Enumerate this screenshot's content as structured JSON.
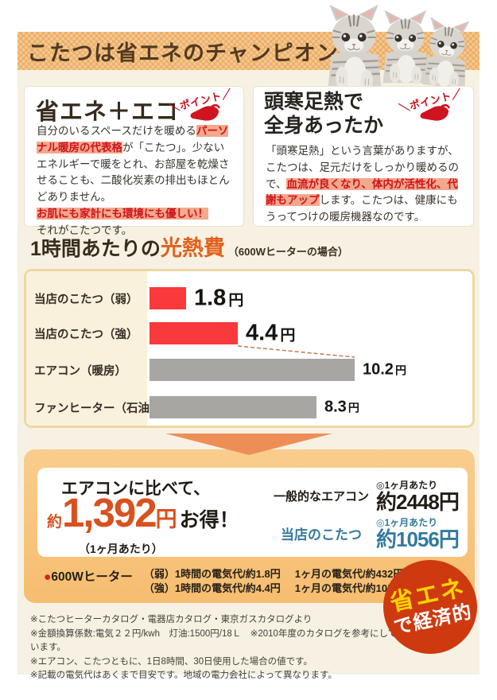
{
  "banner": {
    "title": "こたつは省エネのチャンピオン！"
  },
  "point_label": "＼ポイント／",
  "eco_box": {
    "heading": "省エネ＋エコ",
    "body": [
      {
        "t": "自分のいるスペースだけを暖める"
      },
      {
        "t": "パーソナル暖房の代表格",
        "h": true
      },
      {
        "t": "が「こたつ」。少ないエネルギーで暖をとれ、お部屋を乾燥させることも、二酸化炭素の排出もほとんどありません。"
      },
      {
        "br": true
      },
      {
        "t": "お肌にも家計にも環境にも優しい！",
        "h": true
      },
      {
        "br": true
      },
      {
        "t": "それがこたつです。"
      }
    ]
  },
  "warm_box": {
    "heading_line1": "頭寒足熱で",
    "heading_line2": "全身あったか",
    "body": [
      {
        "t": "「頭寒足熱」という言葉がありますが、こたつは、足元だけをしっかり暖めるので、"
      },
      {
        "t": "血流が良くなり、体内が活性化、代謝もアップ",
        "h": true
      },
      {
        "t": "します。こたつは、健康にもうってつけの暖房機器なのです。"
      }
    ]
  },
  "chart_heading": {
    "prefix": "1時間あたりの",
    "em": "光熱費",
    "suffix": "（600Wヒーターの場合）"
  },
  "chart_data": {
    "type": "bar",
    "orientation": "horizontal",
    "title": "1時間あたりの光熱費（600Wヒーターの場合）",
    "categories": [
      "当店のこたつ（弱）",
      "当店のこたつ（強）",
      "エアコン（暖房）",
      "ファンヒーター（石油）"
    ],
    "values": [
      1.8,
      4.4,
      10.2,
      8.3
    ],
    "unit": "円",
    "bar_colors": [
      "#f83a3c",
      "#f83a3c",
      "#a8a6a3",
      "#a8a6a3"
    ],
    "xlim": [
      0,
      11
    ],
    "grid": false,
    "annotation": "dashed connector from こたつ（強） bar end down to エアコン（暖房） bar end"
  },
  "savings": {
    "lead": "エアコンに比べて、",
    "approx": "約",
    "amount": "1,392",
    "unit": "円",
    "suffix": "お得！",
    "per_note": "（1ヶ月あたり）",
    "rows": [
      {
        "label": "一般的なエアコン",
        "per": "◎1ヶ月あたり",
        "value": "約2448円"
      },
      {
        "label": "当店のこたつ",
        "per": "◎1ヶ月あたり",
        "value": "約1056円"
      }
    ],
    "heater": {
      "bullet": "●",
      "label": "600Wヒーター",
      "lines": [
        [
          "（弱）1時間の電気代/約1.8円",
          "1ヶ月の電気代/約432円"
        ],
        [
          "（強）1時間の電気代/約4.4円",
          "1ヶ月の電気代/約1056円"
        ]
      ]
    }
  },
  "badge": {
    "line1": "省エネ",
    "line2": "で経済的"
  },
  "footnotes": [
    "※こたつヒーターカタログ・電器店カタログ・東京ガスカタログより",
    "※金額換算係数:電気２２円/kwh　灯油:1500円/18Ｌ　※2010年度のカタログを参考にしています。",
    "※エアコン、こたつともに、1日8時間、30日使用した場合の値です。",
    "※記載の電気代はあくまで目安です。地域の電力会社によって異なります。"
  ],
  "colors": {
    "bar_red": "#f83a3c",
    "bar_gray": "#a8a6a3",
    "accent_orange": "#e2611c",
    "panel_orange": "#f8c57e",
    "highlight_red": "#d0121d",
    "kotatsu_blue": "#34799e",
    "badge_red": "#ce390f",
    "badge_yellow": "#ffd400"
  }
}
